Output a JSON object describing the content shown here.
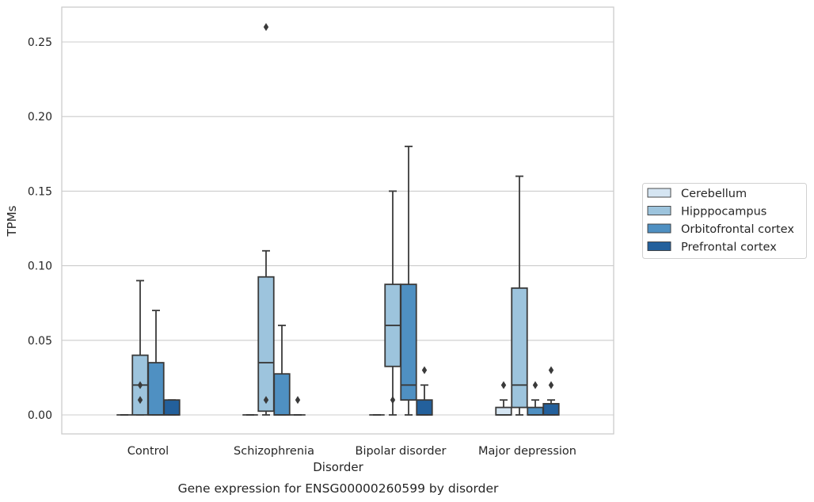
{
  "chart_data": {
    "type": "box",
    "title": "",
    "caption": "Gene expression for ENSG00000260599 by disorder",
    "xlabel": "Disorder",
    "ylabel": "TPMs",
    "ylim": [
      -0.012,
      0.274
    ],
    "yticks": [
      "0.00",
      "0.05",
      "0.10",
      "0.15",
      "0.20",
      "0.25"
    ],
    "ytick_values": [
      0,
      0.05,
      0.1,
      0.15,
      0.2,
      0.25
    ],
    "grid": true,
    "legend_position": "right",
    "categories": [
      "Control",
      "Schizophrenia",
      "Bipolar disorder",
      "Major depression"
    ],
    "series": [
      {
        "name": "Cerebellum",
        "color": "#d5e5f2",
        "boxes": [
          {
            "whislo": 0,
            "q1": 0,
            "med": 0,
            "q3": 0,
            "whishi": 0,
            "fliers": []
          },
          {
            "whislo": 0,
            "q1": 0,
            "med": 0,
            "q3": 0,
            "whishi": 0,
            "fliers": []
          },
          {
            "whislo": 0,
            "q1": 0,
            "med": 0,
            "q3": 0,
            "whishi": 0,
            "fliers": []
          },
          {
            "whislo": 0,
            "q1": 0,
            "med": 0,
            "q3": 0.005,
            "whishi": 0.01,
            "fliers": [
              0.02
            ]
          }
        ]
      },
      {
        "name": "Hipppocampus",
        "color": "#9dc4dd",
        "boxes": [
          {
            "whislo": 0,
            "q1": 0,
            "med": 0.02,
            "q3": 0.04,
            "whishi": 0.09,
            "fliers": [
              0.01,
              0.02
            ]
          },
          {
            "whislo": 0,
            "q1": 0.0025,
            "med": 0.035,
            "q3": 0.0925,
            "whishi": 0.11,
            "fliers": [
              0.01,
              0.26
            ]
          },
          {
            "whislo": 0,
            "q1": 0.0325,
            "med": 0.06,
            "q3": 0.0875,
            "whishi": 0.15,
            "fliers": [
              0.01
            ]
          },
          {
            "whislo": 0,
            "q1": 0.005,
            "med": 0.02,
            "q3": 0.085,
            "whishi": 0.16,
            "fliers": []
          }
        ]
      },
      {
        "name": "Orbitofrontal cortex",
        "color": "#4f90c2",
        "boxes": [
          {
            "whislo": 0,
            "q1": 0,
            "med": 0,
            "q3": 0.035,
            "whishi": 0.07,
            "fliers": []
          },
          {
            "whislo": 0,
            "q1": 0,
            "med": 0,
            "q3": 0.0275,
            "whishi": 0.06,
            "fliers": []
          },
          {
            "whislo": 0,
            "q1": 0.01,
            "med": 0.02,
            "q3": 0.0875,
            "whishi": 0.18,
            "fliers": []
          },
          {
            "whislo": 0,
            "q1": 0,
            "med": 0,
            "q3": 0.005,
            "whishi": 0.01,
            "fliers": [
              0.02
            ]
          }
        ]
      },
      {
        "name": "Prefrontal cortex",
        "color": "#23609c",
        "boxes": [
          {
            "whislo": 0,
            "q1": 0,
            "med": 0,
            "q3": 0.01,
            "whishi": 0.01,
            "fliers": []
          },
          {
            "whislo": 0,
            "q1": 0,
            "med": 0,
            "q3": 0,
            "whishi": 0,
            "fliers": [
              0.01
            ]
          },
          {
            "whislo": 0,
            "q1": 0,
            "med": 0,
            "q3": 0.01,
            "whishi": 0.02,
            "fliers": [
              0.03
            ]
          },
          {
            "whislo": 0,
            "q1": 0,
            "med": 0,
            "q3": 0.0075,
            "whishi": 0.01,
            "fliers": [
              0.02,
              0.03
            ]
          }
        ]
      }
    ]
  }
}
